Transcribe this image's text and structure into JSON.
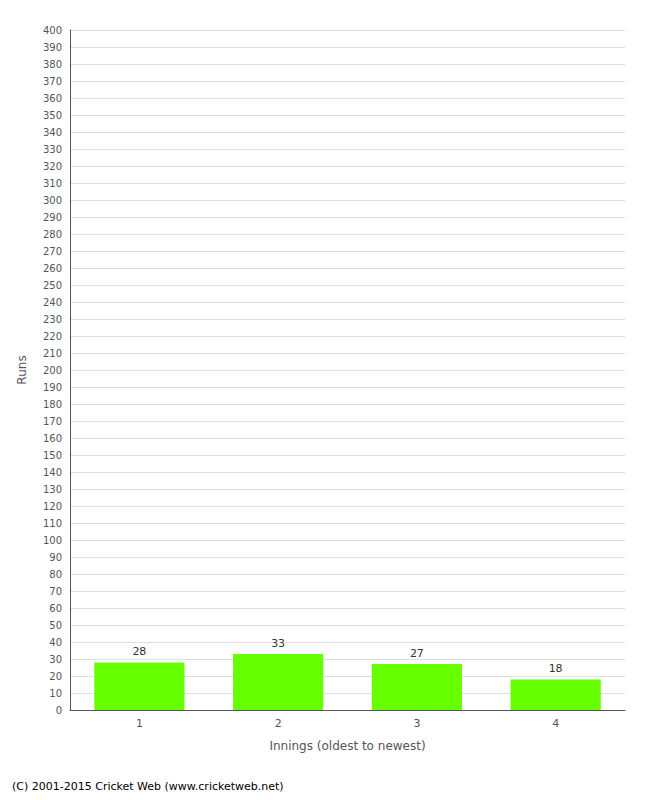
{
  "chart_data": {
    "type": "bar",
    "categories": [
      "1",
      "2",
      "3",
      "4"
    ],
    "values": [
      28,
      33,
      27,
      18
    ],
    "color": "#66ff00",
    "xlabel": "Innings (oldest to newest)",
    "ylabel": "Runs",
    "ylim": [
      0,
      400
    ],
    "yticks": [
      0,
      10,
      20,
      30,
      40,
      50,
      60,
      70,
      80,
      90,
      100,
      110,
      120,
      130,
      140,
      150,
      160,
      170,
      180,
      190,
      200,
      210,
      220,
      230,
      240,
      250,
      260,
      270,
      280,
      290,
      300,
      310,
      320,
      330,
      340,
      350,
      360,
      370,
      380,
      390,
      400
    ],
    "grid": true,
    "data_labels": true,
    "annotations": [
      "(C) 2001-2015 Cricket Web (www.cricketweb.net)"
    ]
  }
}
